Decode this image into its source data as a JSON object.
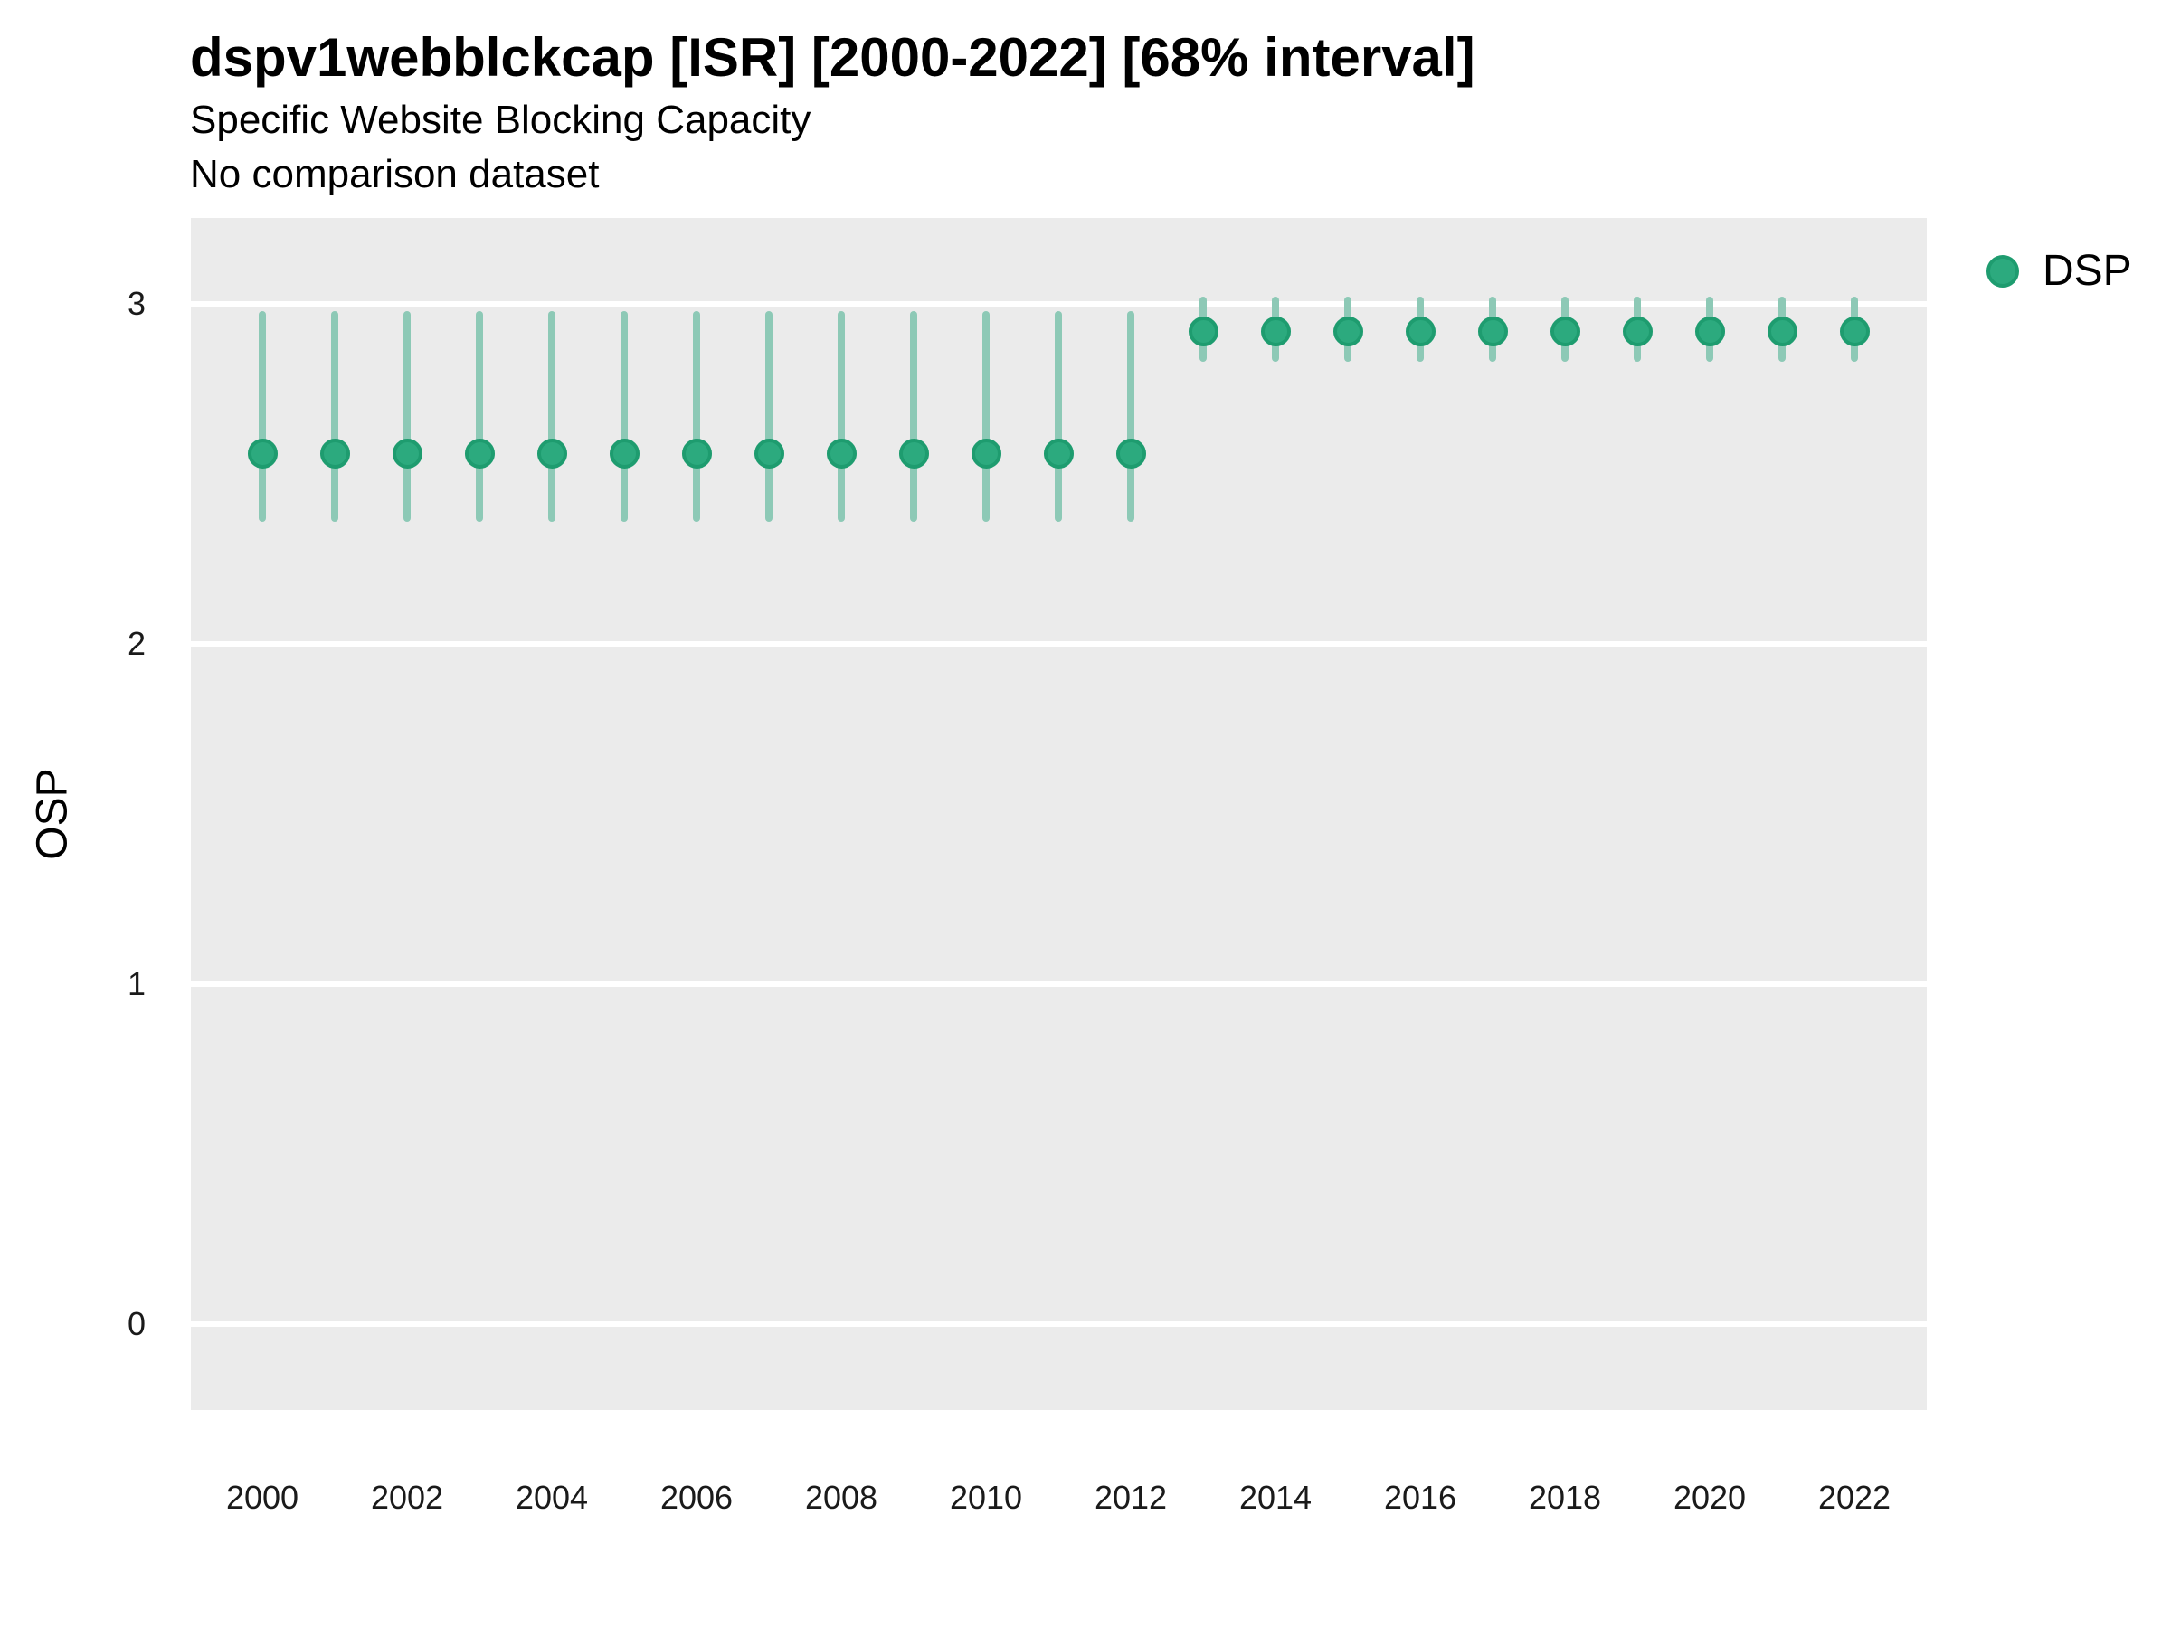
{
  "header": {
    "title": "dspv1webblckcap [ISR] [2000-2022] [68% interval]",
    "subtitle": "Specific Website Blocking Capacity",
    "note": "No comparison dataset"
  },
  "legend": {
    "label": "DSP"
  },
  "chart_data": {
    "type": "scatter",
    "subtype": "pointrange",
    "title": "dspv1webblckcap [ISR] [2000-2022] [68% interval]",
    "subtitle": "Specific Website Blocking Capacity",
    "note": "No comparison dataset",
    "interval": "68%",
    "xlabel": "",
    "ylabel": "OSP",
    "ylim": [
      -0.26,
      3.25
    ],
    "xlim": [
      1999,
      2023
    ],
    "y_ticks": [
      3,
      2,
      1,
      0
    ],
    "x_ticks": [
      2000,
      2002,
      2004,
      2006,
      2008,
      2010,
      2012,
      2014,
      2016,
      2018,
      2020,
      2022
    ],
    "grid": "horizontal-major-only",
    "legend_position": "right-top",
    "series": [
      {
        "name": "DSP",
        "x": [
          2000,
          2001,
          2002,
          2003,
          2004,
          2005,
          2006,
          2007,
          2008,
          2009,
          2010,
          2011,
          2012,
          2013,
          2014,
          2015,
          2016,
          2017,
          2018,
          2019,
          2020,
          2021,
          2022
        ],
        "est": [
          2.56,
          2.56,
          2.56,
          2.56,
          2.56,
          2.56,
          2.56,
          2.56,
          2.56,
          2.56,
          2.56,
          2.56,
          2.56,
          2.92,
          2.92,
          2.92,
          2.92,
          2.92,
          2.92,
          2.92,
          2.92,
          2.92,
          2.92
        ],
        "ci_lower": [
          2.36,
          2.36,
          2.36,
          2.36,
          2.36,
          2.36,
          2.36,
          2.36,
          2.36,
          2.36,
          2.36,
          2.36,
          2.36,
          2.83,
          2.83,
          2.83,
          2.83,
          2.83,
          2.83,
          2.83,
          2.83,
          2.83,
          2.83
        ],
        "ci_upper": [
          2.98,
          2.98,
          2.98,
          2.98,
          2.98,
          2.98,
          2.98,
          2.98,
          2.98,
          2.98,
          2.98,
          2.98,
          2.98,
          3.02,
          3.02,
          3.02,
          3.02,
          3.02,
          3.02,
          3.02,
          3.02,
          3.02,
          3.02
        ]
      }
    ],
    "colors": {
      "point_fill": "#2CAA7E",
      "point_border": "#1E9C6F",
      "interval_line": "#8DC9B6",
      "panel_background": "#EBEBEB",
      "gridline": "#FFFFFF"
    }
  }
}
